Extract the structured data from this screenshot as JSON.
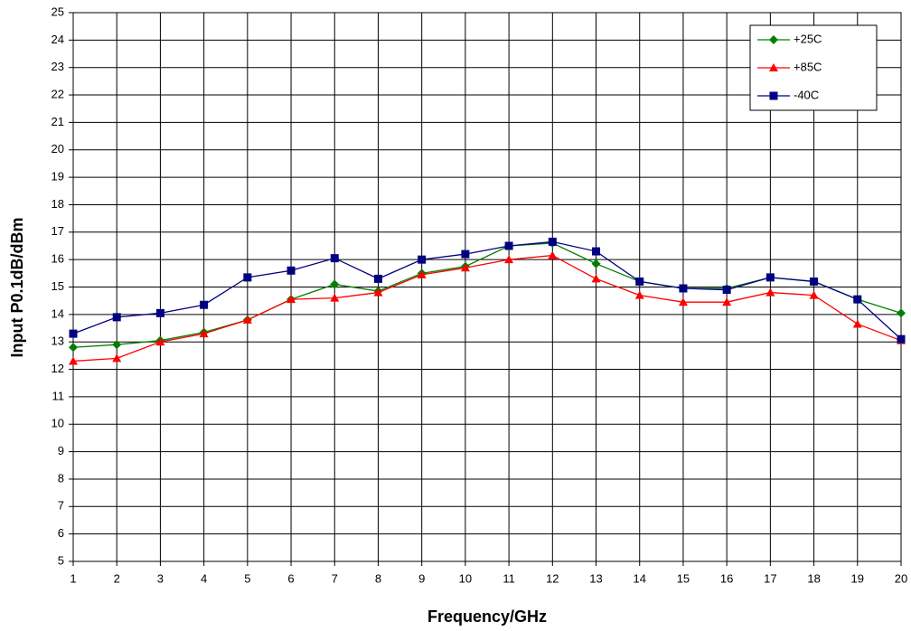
{
  "chart_data": {
    "type": "line",
    "x_label": "Frequency/GHz",
    "y_label": "Input P0.1dB/dBm",
    "x": [
      1,
      2,
      3,
      4,
      5,
      6,
      7,
      8,
      9,
      10,
      11,
      12,
      13,
      14,
      15,
      16,
      17,
      18,
      19,
      20
    ],
    "xlim": [
      1,
      20
    ],
    "xticks": [
      1,
      2,
      3,
      4,
      5,
      6,
      7,
      8,
      9,
      10,
      11,
      12,
      13,
      14,
      15,
      16,
      17,
      18,
      19,
      20
    ],
    "ylim": [
      5,
      25
    ],
    "yticks": [
      5,
      6,
      7,
      8,
      9,
      10,
      11,
      12,
      13,
      14,
      15,
      16,
      17,
      18,
      19,
      20,
      21,
      22,
      23,
      24,
      25
    ],
    "grid": true,
    "legend": "upper right",
    "series": [
      {
        "name": "+25C",
        "color": "#008000",
        "marker": "diamond",
        "values": [
          12.8,
          12.9,
          13.05,
          13.35,
          13.8,
          14.55,
          15.1,
          14.85,
          15.5,
          15.75,
          16.5,
          16.6,
          15.85,
          15.2,
          14.95,
          14.95,
          15.35,
          15.2,
          14.55,
          14.05
        ]
      },
      {
        "name": "+85C",
        "color": "#ff0000",
        "marker": "triangle",
        "values": [
          12.3,
          12.4,
          13.0,
          13.3,
          13.8,
          14.55,
          14.6,
          14.8,
          15.45,
          15.7,
          16.0,
          16.15,
          15.3,
          14.7,
          14.45,
          14.45,
          14.8,
          14.7,
          13.65,
          13.05
        ]
      },
      {
        "name": "-40C",
        "color": "#000080",
        "marker": "square",
        "values": [
          13.3,
          13.9,
          14.05,
          14.35,
          15.35,
          15.6,
          16.05,
          15.3,
          16.0,
          16.2,
          16.5,
          16.65,
          16.3,
          15.2,
          14.95,
          14.9,
          15.35,
          15.2,
          14.55,
          13.1
        ]
      }
    ]
  }
}
